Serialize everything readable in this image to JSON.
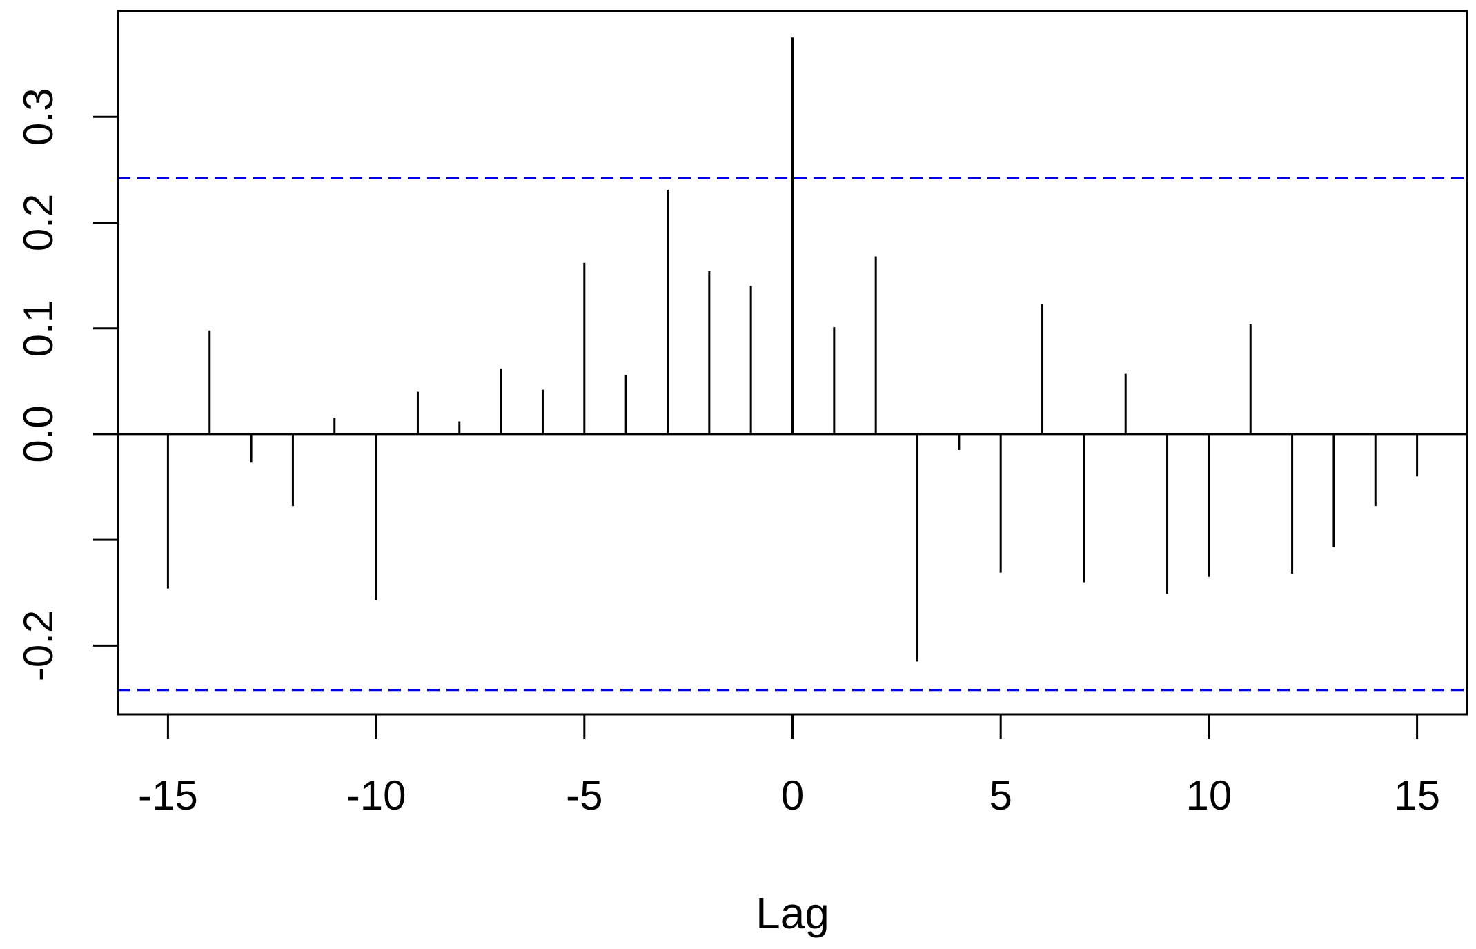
{
  "chart_data": {
    "type": "bar",
    "xlabel": "Lag",
    "ylabel": "",
    "xlim": [
      -16.2,
      16.2
    ],
    "ylim": [
      -0.265,
      0.4
    ],
    "x_ticks": [
      -15,
      -10,
      -5,
      0,
      5,
      10,
      15
    ],
    "x_tick_labels": [
      "-15",
      "-10",
      "-5",
      "0",
      "5",
      "10",
      "15"
    ],
    "y_ticks": [
      -0.2,
      -0.1,
      0.0,
      0.1,
      0.2,
      0.3
    ],
    "y_tick_labels": [
      "-0.2",
      "",
      "0.0",
      "0.1",
      "0.2",
      "0.3"
    ],
    "confidence_limits": [
      0.242,
      -0.242
    ],
    "confidence_color": "#0000ee",
    "bar_color": "#000000",
    "lags": [
      -15,
      -14,
      -13,
      -12,
      -11,
      -10,
      -9,
      -8,
      -7,
      -6,
      -5,
      -4,
      -3,
      -2,
      -1,
      0,
      1,
      2,
      3,
      4,
      5,
      6,
      7,
      8,
      9,
      10,
      11,
      12,
      13,
      14,
      15
    ],
    "values": [
      -0.146,
      0.098,
      -0.027,
      -0.068,
      0.015,
      -0.157,
      0.04,
      0.012,
      0.062,
      0.042,
      0.162,
      0.056,
      0.231,
      0.154,
      0.14,
      0.375,
      0.101,
      0.168,
      -0.215,
      -0.015,
      -0.131,
      0.123,
      -0.14,
      0.057,
      -0.151,
      -0.135,
      0.104,
      -0.132,
      -0.107,
      -0.068,
      -0.04
    ]
  }
}
